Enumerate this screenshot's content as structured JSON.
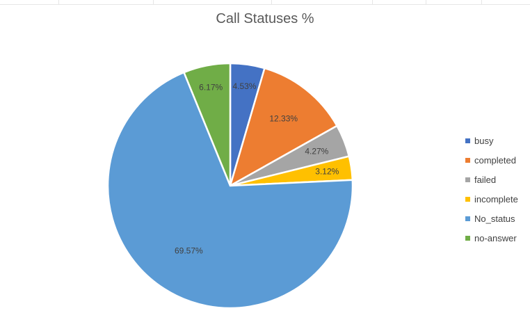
{
  "chart_data": {
    "type": "pie",
    "title": "Call Statuses %",
    "legend_position": "right",
    "slices": [
      {
        "label": "busy",
        "value": 4.53,
        "display": "4.53%",
        "color": "#4472C4"
      },
      {
        "label": "completed",
        "value": 12.33,
        "display": "12.33%",
        "color": "#ED7D31"
      },
      {
        "label": "failed",
        "value": 4.27,
        "display": "4.27%",
        "color": "#A5A5A5"
      },
      {
        "label": "incomplete",
        "value": 3.12,
        "display": "3.12%",
        "color": "#FFC000"
      },
      {
        "label": "No_status",
        "value": 69.57,
        "display": "69.57%",
        "color": "#5B9BD5"
      },
      {
        "label": "no-answer",
        "value": 6.17,
        "display": "6.17%",
        "color": "#70AD47"
      }
    ]
  }
}
